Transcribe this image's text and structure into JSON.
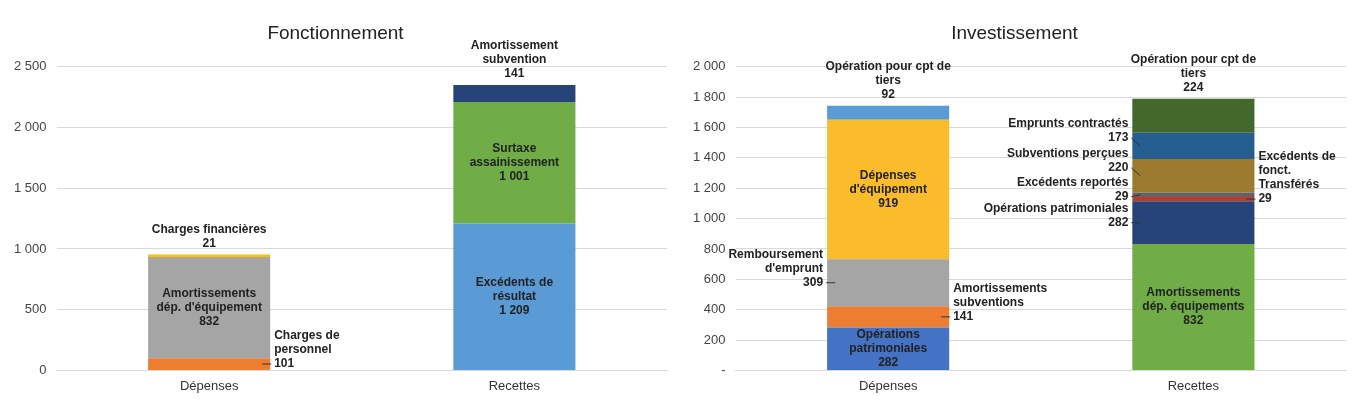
{
  "chart_data": [
    {
      "type": "bar",
      "title": "Fonctionnement",
      "categories": [
        "Dépenses",
        "Recettes"
      ],
      "stacked": true,
      "grid": "y",
      "ylim": [
        0,
        2500
      ],
      "yticks": [
        0,
        500,
        {
          "value": 1000,
          "label": "1 000"
        },
        {
          "value": 1500,
          "label": "1 500"
        },
        {
          "value": 2000,
          "label": "2 000"
        },
        {
          "value": 2500,
          "label": "2 500"
        }
      ],
      "series": [
        {
          "name": "Charges de personnel",
          "color": "#ed7d31",
          "values": [
            101,
            null
          ],
          "value_labels": [
            "101",
            null
          ]
        },
        {
          "name": "Amortissements dép. d'équipement",
          "color": "#a5a5a5",
          "values": [
            832,
            null
          ],
          "value_labels": [
            "832",
            null
          ]
        },
        {
          "name": "Charges financières",
          "color": "#ffc000",
          "values": [
            21,
            null
          ],
          "value_labels": [
            "21",
            null
          ]
        },
        {
          "name": "Excédents de résultat",
          "color": "#5b9bd5",
          "values": [
            null,
            1209
          ],
          "value_labels": [
            null,
            "1 209"
          ]
        },
        {
          "name": "Surtaxe assainissement",
          "color": "#70ad47",
          "values": [
            null,
            1001
          ],
          "value_labels": [
            null,
            "1 001"
          ]
        },
        {
          "name": "Amortissement subvention",
          "color": "#264478",
          "values": [
            null,
            141
          ],
          "value_labels": [
            null,
            "141"
          ]
        }
      ]
    },
    {
      "type": "bar",
      "title": "Investissement",
      "categories": [
        "Dépenses",
        "Recettes"
      ],
      "stacked": true,
      "grid": "y",
      "ylim": [
        0,
        2000
      ],
      "yticks": [
        {
          "value": 0,
          "label": "-"
        },
        200,
        400,
        600,
        800,
        {
          "value": 1000,
          "label": "1 000"
        },
        {
          "value": 1200,
          "label": "1 200"
        },
        {
          "value": 1400,
          "label": "1 400"
        },
        {
          "value": 1600,
          "label": "1 600"
        },
        {
          "value": 1800,
          "label": "1 800"
        },
        {
          "value": 2000,
          "label": "2 000"
        }
      ],
      "series": [
        {
          "name": "Opérations patrimoniales",
          "color": "#4472c4",
          "values": [
            282,
            null
          ],
          "value_labels": [
            "282",
            null
          ]
        },
        {
          "name": "Amortissements subventions",
          "color": "#ed7d31",
          "values": [
            141,
            null
          ],
          "value_labels": [
            "141",
            null
          ]
        },
        {
          "name": "Remboursement d'emprunt",
          "color": "#a5a5a5",
          "values": [
            309,
            null
          ],
          "value_labels": [
            "309",
            null
          ]
        },
        {
          "name": "Dépenses d'équipement",
          "color": "#fbbc2c",
          "values": [
            919,
            null
          ],
          "value_labels": [
            "919",
            null
          ]
        },
        {
          "name": "Opération pour cpt de tiers",
          "color": "#5b9bd5",
          "values": [
            92,
            null
          ],
          "value_labels": [
            "92",
            null
          ]
        },
        {
          "name": "Amortissements dép. équipements",
          "color": "#70ad47",
          "values": [
            null,
            832
          ],
          "value_labels": [
            null,
            "832"
          ]
        },
        {
          "name": "Opérations patrimoniales",
          "color": "#264478",
          "values": [
            null,
            282
          ],
          "value_labels": [
            null,
            "282"
          ]
        },
        {
          "name": "Excédents de fonct. Transférés",
          "color": "#c0392b",
          "values": [
            null,
            29
          ],
          "value_labels": [
            null,
            "29"
          ]
        },
        {
          "name": "Excédents reportés",
          "color": "#636363",
          "values": [
            null,
            29
          ],
          "value_labels": [
            null,
            "29"
          ]
        },
        {
          "name": "Subventions perçues",
          "color": "#9c7a2e",
          "values": [
            null,
            220
          ],
          "value_labels": [
            null,
            "220"
          ]
        },
        {
          "name": "Emprunts contractés",
          "color": "#255e91",
          "values": [
            null,
            173
          ],
          "value_labels": [
            null,
            "173"
          ]
        },
        {
          "name": "Opération pour cpt de tiers",
          "color": "#43682b",
          "values": [
            null,
            224
          ],
          "value_labels": [
            null,
            "224"
          ]
        }
      ]
    }
  ]
}
